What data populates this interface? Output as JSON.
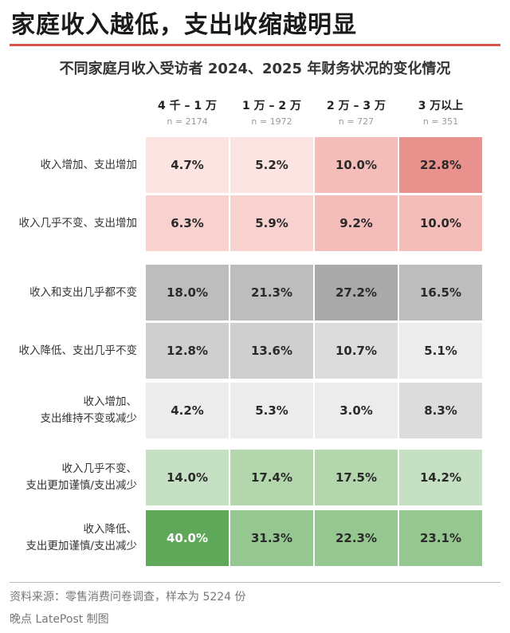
{
  "header": {
    "title": "家庭收入越低，支出收缩越明显",
    "subtitle": "不同家庭月收入受访者 2024、2025 年财务状况的变化情况"
  },
  "footer": {
    "source": "资料来源：零售消费问卷调查，样本为 5224 份",
    "credit": "晚点 LatePost 制图"
  },
  "colors": {
    "accent": "#d9534f",
    "red_scale": [
      "#fbe4e2",
      "#f8d2cf",
      "#f4bdb9",
      "#e9918c"
    ],
    "gray_scale": [
      "#ececec",
      "#dcdcdc",
      "#cfcfcf",
      "#bdbdbd",
      "#a9a9a9"
    ],
    "green_scale": [
      "#c6e0c3",
      "#b3d6ad",
      "#97c791",
      "#5fa859"
    ]
  },
  "chart_data": {
    "type": "heatmap",
    "title": "不同家庭月收入受访者 2024、2025 年财务状况的变化情况",
    "columns": [
      {
        "label": "4 千 – 1 万",
        "n": "n = 2174"
      },
      {
        "label": "1 万 – 2 万",
        "n": "n = 1972"
      },
      {
        "label": "2 万 – 3 万",
        "n": "n = 727"
      },
      {
        "label": "3 万以上",
        "n": "n = 351"
      }
    ],
    "rows": [
      {
        "label": [
          "收入增加、支出增加"
        ],
        "group": "red",
        "values": [
          4.7,
          5.2,
          10.0,
          22.8
        ]
      },
      {
        "label": [
          "收入几乎不变、支出增加"
        ],
        "group": "red",
        "values": [
          6.3,
          5.9,
          9.2,
          10.0
        ]
      },
      {
        "label": [
          "收入和支出几乎都不变"
        ],
        "group": "gray",
        "values": [
          18.0,
          21.3,
          27.2,
          16.5
        ]
      },
      {
        "label": [
          "收入降低、支出几乎不变"
        ],
        "group": "gray",
        "values": [
          12.8,
          13.6,
          10.7,
          5.1
        ]
      },
      {
        "label": [
          "收入增加、",
          "支出维持不变或减少"
        ],
        "group": "gray",
        "values": [
          4.2,
          5.3,
          3.0,
          8.3
        ]
      },
      {
        "label": [
          "收入几乎不变、",
          "支出更加谨慎/支出减少"
        ],
        "group": "green",
        "values": [
          14.0,
          17.4,
          17.5,
          14.2
        ]
      },
      {
        "label": [
          "收入降低、",
          "支出更加谨慎/支出减少"
        ],
        "group": "green",
        "values": [
          40.0,
          31.3,
          22.3,
          23.1
        ]
      }
    ],
    "unit": "%"
  }
}
